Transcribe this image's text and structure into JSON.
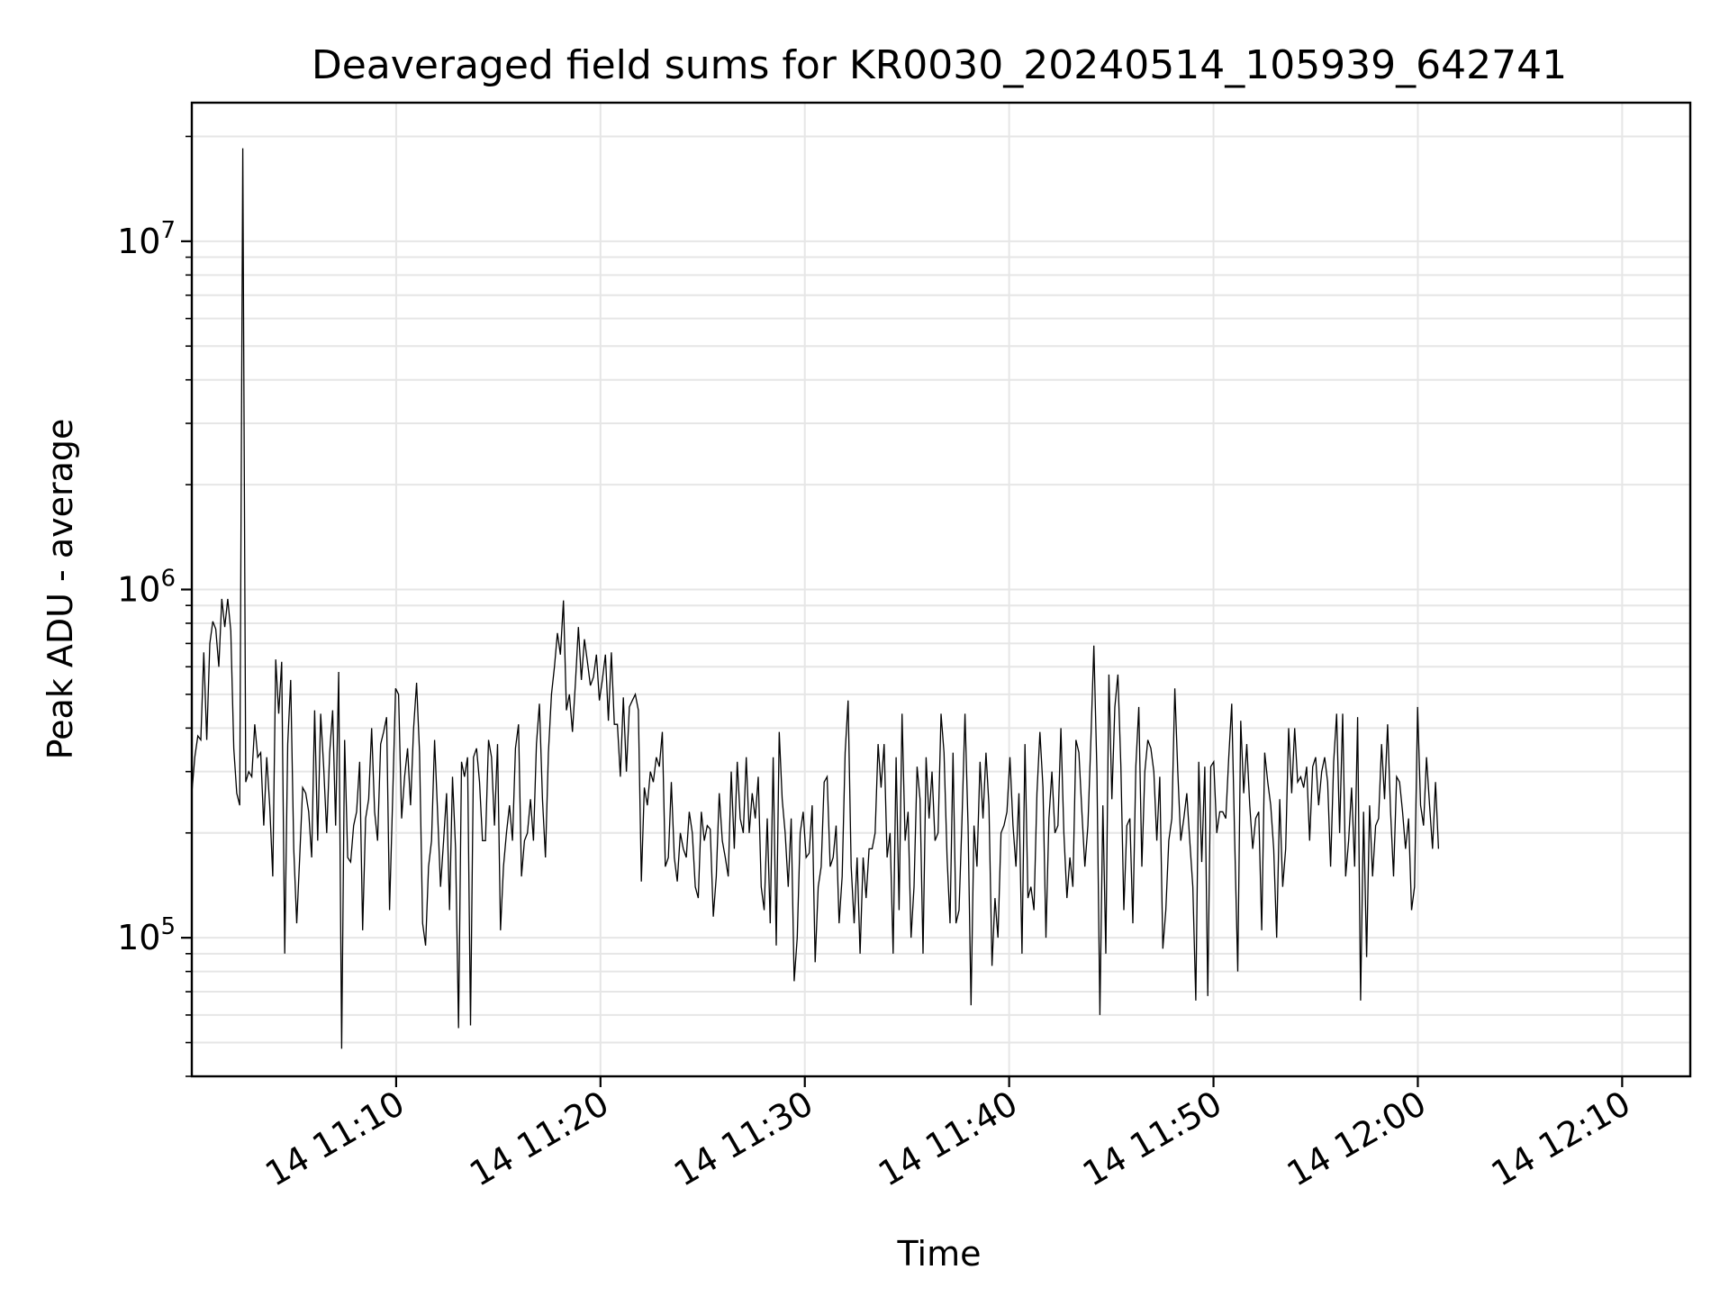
{
  "chart_data": {
    "type": "line",
    "title": "Deaveraged field sums for KR0030_20240514_105939_642741",
    "xlabel": "Time",
    "ylabel": "Peak ADU - average",
    "yscale": "log",
    "ylim": [
      40000,
      25000000
    ],
    "xlim": [
      "2024-05-14 11:00:00",
      "2024-05-14 12:13:20"
    ],
    "grid": true,
    "x_ticks": [
      {
        "value": "2024-05-14 11:10",
        "label": "14 11:10"
      },
      {
        "value": "2024-05-14 11:20",
        "label": "14 11:20"
      },
      {
        "value": "2024-05-14 11:30",
        "label": "14 11:30"
      },
      {
        "value": "2024-05-14 11:40",
        "label": "14 11:40"
      },
      {
        "value": "2024-05-14 11:50",
        "label": "14 11:50"
      },
      {
        "value": "2024-05-14 12:00",
        "label": "14 12:00"
      },
      {
        "value": "2024-05-14 12:10",
        "label": "14 12:10"
      }
    ],
    "y_ticks": [
      {
        "value": 100000,
        "base": "10",
        "exp": "5"
      },
      {
        "value": 1000000,
        "base": "10",
        "exp": "6"
      },
      {
        "value": 10000000,
        "base": "10",
        "exp": "7"
      }
    ],
    "colors": {
      "line": "#000000",
      "grid": "#e6e6e6",
      "axes": "#000000"
    },
    "series": [
      {
        "x_start": "2024-05-14 11:00:00",
        "x_step_seconds": 8.8,
        "y": [
          260000,
          330000,
          380000,
          370000,
          660000,
          370000,
          700000,
          810000,
          770000,
          600000,
          940000,
          780000,
          940000,
          760000,
          350000,
          260000,
          240000,
          18500000,
          280000,
          300000,
          290000,
          410000,
          330000,
          340000,
          210000,
          330000,
          240000,
          150000,
          630000,
          440000,
          620000,
          90000,
          360000,
          550000,
          180000,
          110000,
          170000,
          270000,
          260000,
          230000,
          170000,
          450000,
          190000,
          440000,
          310000,
          200000,
          340000,
          450000,
          210000,
          580000,
          48000,
          370000,
          170000,
          165000,
          210000,
          230000,
          320000,
          105000,
          220000,
          250000,
          400000,
          230000,
          190000,
          360000,
          390000,
          430000,
          120000,
          250000,
          520000,
          500000,
          220000,
          290000,
          350000,
          240000,
          400000,
          540000,
          340000,
          110000,
          95000,
          160000,
          190000,
          370000,
          230000,
          140000,
          190000,
          260000,
          120000,
          290000,
          180000,
          55000,
          320000,
          290000,
          330000,
          56000,
          330000,
          350000,
          280000,
          190000,
          190000,
          370000,
          330000,
          210000,
          360000,
          105000,
          160000,
          200000,
          240000,
          190000,
          350000,
          410000,
          150000,
          190000,
          200000,
          250000,
          190000,
          360000,
          470000,
          250000,
          170000,
          340000,
          500000,
          600000,
          750000,
          650000,
          930000,
          450000,
          500000,
          390000,
          540000,
          780000,
          550000,
          720000,
          620000,
          530000,
          560000,
          650000,
          480000,
          550000,
          650000,
          420000,
          660000,
          410000,
          410000,
          290000,
          490000,
          300000,
          460000,
          480000,
          500000,
          450000,
          145000,
          270000,
          240000,
          300000,
          280000,
          330000,
          310000,
          390000,
          160000,
          170000,
          280000,
          170000,
          145000,
          200000,
          180000,
          170000,
          230000,
          200000,
          140000,
          130000,
          230000,
          190000,
          210000,
          205000,
          115000,
          150000,
          260000,
          190000,
          170000,
          150000,
          300000,
          180000,
          320000,
          220000,
          200000,
          330000,
          200000,
          260000,
          220000,
          290000,
          140000,
          120000,
          220000,
          110000,
          330000,
          95000,
          390000,
          250000,
          200000,
          140000,
          220000,
          75000,
          100000,
          200000,
          230000,
          170000,
          175000,
          240000,
          85000,
          140000,
          160000,
          280000,
          290000,
          160000,
          170000,
          210000,
          110000,
          150000,
          340000,
          480000,
          160000,
          110000,
          170000,
          90000,
          170000,
          130000,
          180000,
          180000,
          200000,
          360000,
          270000,
          360000,
          170000,
          200000,
          90000,
          330000,
          120000,
          440000,
          190000,
          230000,
          100000,
          140000,
          310000,
          250000,
          90000,
          330000,
          220000,
          300000,
          190000,
          200000,
          440000,
          340000,
          170000,
          110000,
          340000,
          110000,
          120000,
          220000,
          440000,
          210000,
          64000,
          210000,
          160000,
          320000,
          220000,
          340000,
          240000,
          83000,
          130000,
          100000,
          200000,
          210000,
          230000,
          330000,
          210000,
          160000,
          260000,
          90000,
          360000,
          130000,
          140000,
          120000,
          260000,
          390000,
          270000,
          100000,
          220000,
          300000,
          200000,
          210000,
          400000,
          200000,
          130000,
          170000,
          140000,
          370000,
          340000,
          230000,
          160000,
          210000,
          370000,
          690000,
          300000,
          60000,
          240000,
          90000,
          570000,
          250000,
          460000,
          570000,
          310000,
          120000,
          210000,
          220000,
          110000,
          310000,
          460000,
          160000,
          300000,
          370000,
          350000,
          300000,
          190000,
          290000,
          93000,
          120000,
          190000,
          220000,
          520000,
          300000,
          190000,
          220000,
          260000,
          190000,
          140000,
          66000,
          320000,
          165000,
          310000,
          68000,
          310000,
          320000,
          200000,
          230000,
          230000,
          220000,
          330000,
          470000,
          190000,
          80000,
          420000,
          260000,
          360000,
          240000,
          180000,
          220000,
          230000,
          105000,
          340000,
          280000,
          240000,
          180000,
          100000,
          250000,
          140000,
          180000,
          400000,
          260000,
          400000,
          280000,
          290000,
          270000,
          310000,
          190000,
          310000,
          330000,
          240000,
          300000,
          330000,
          280000,
          160000,
          320000,
          440000,
          200000,
          440000,
          150000,
          190000,
          270000,
          160000,
          430000,
          66000,
          230000,
          88000,
          240000,
          150000,
          210000,
          220000,
          360000,
          250000,
          410000,
          230000,
          150000,
          290000,
          280000,
          230000,
          180000,
          220000,
          120000,
          140000,
          460000,
          240000,
          210000,
          330000,
          240000,
          180000,
          280000,
          180000
        ]
      }
    ]
  }
}
